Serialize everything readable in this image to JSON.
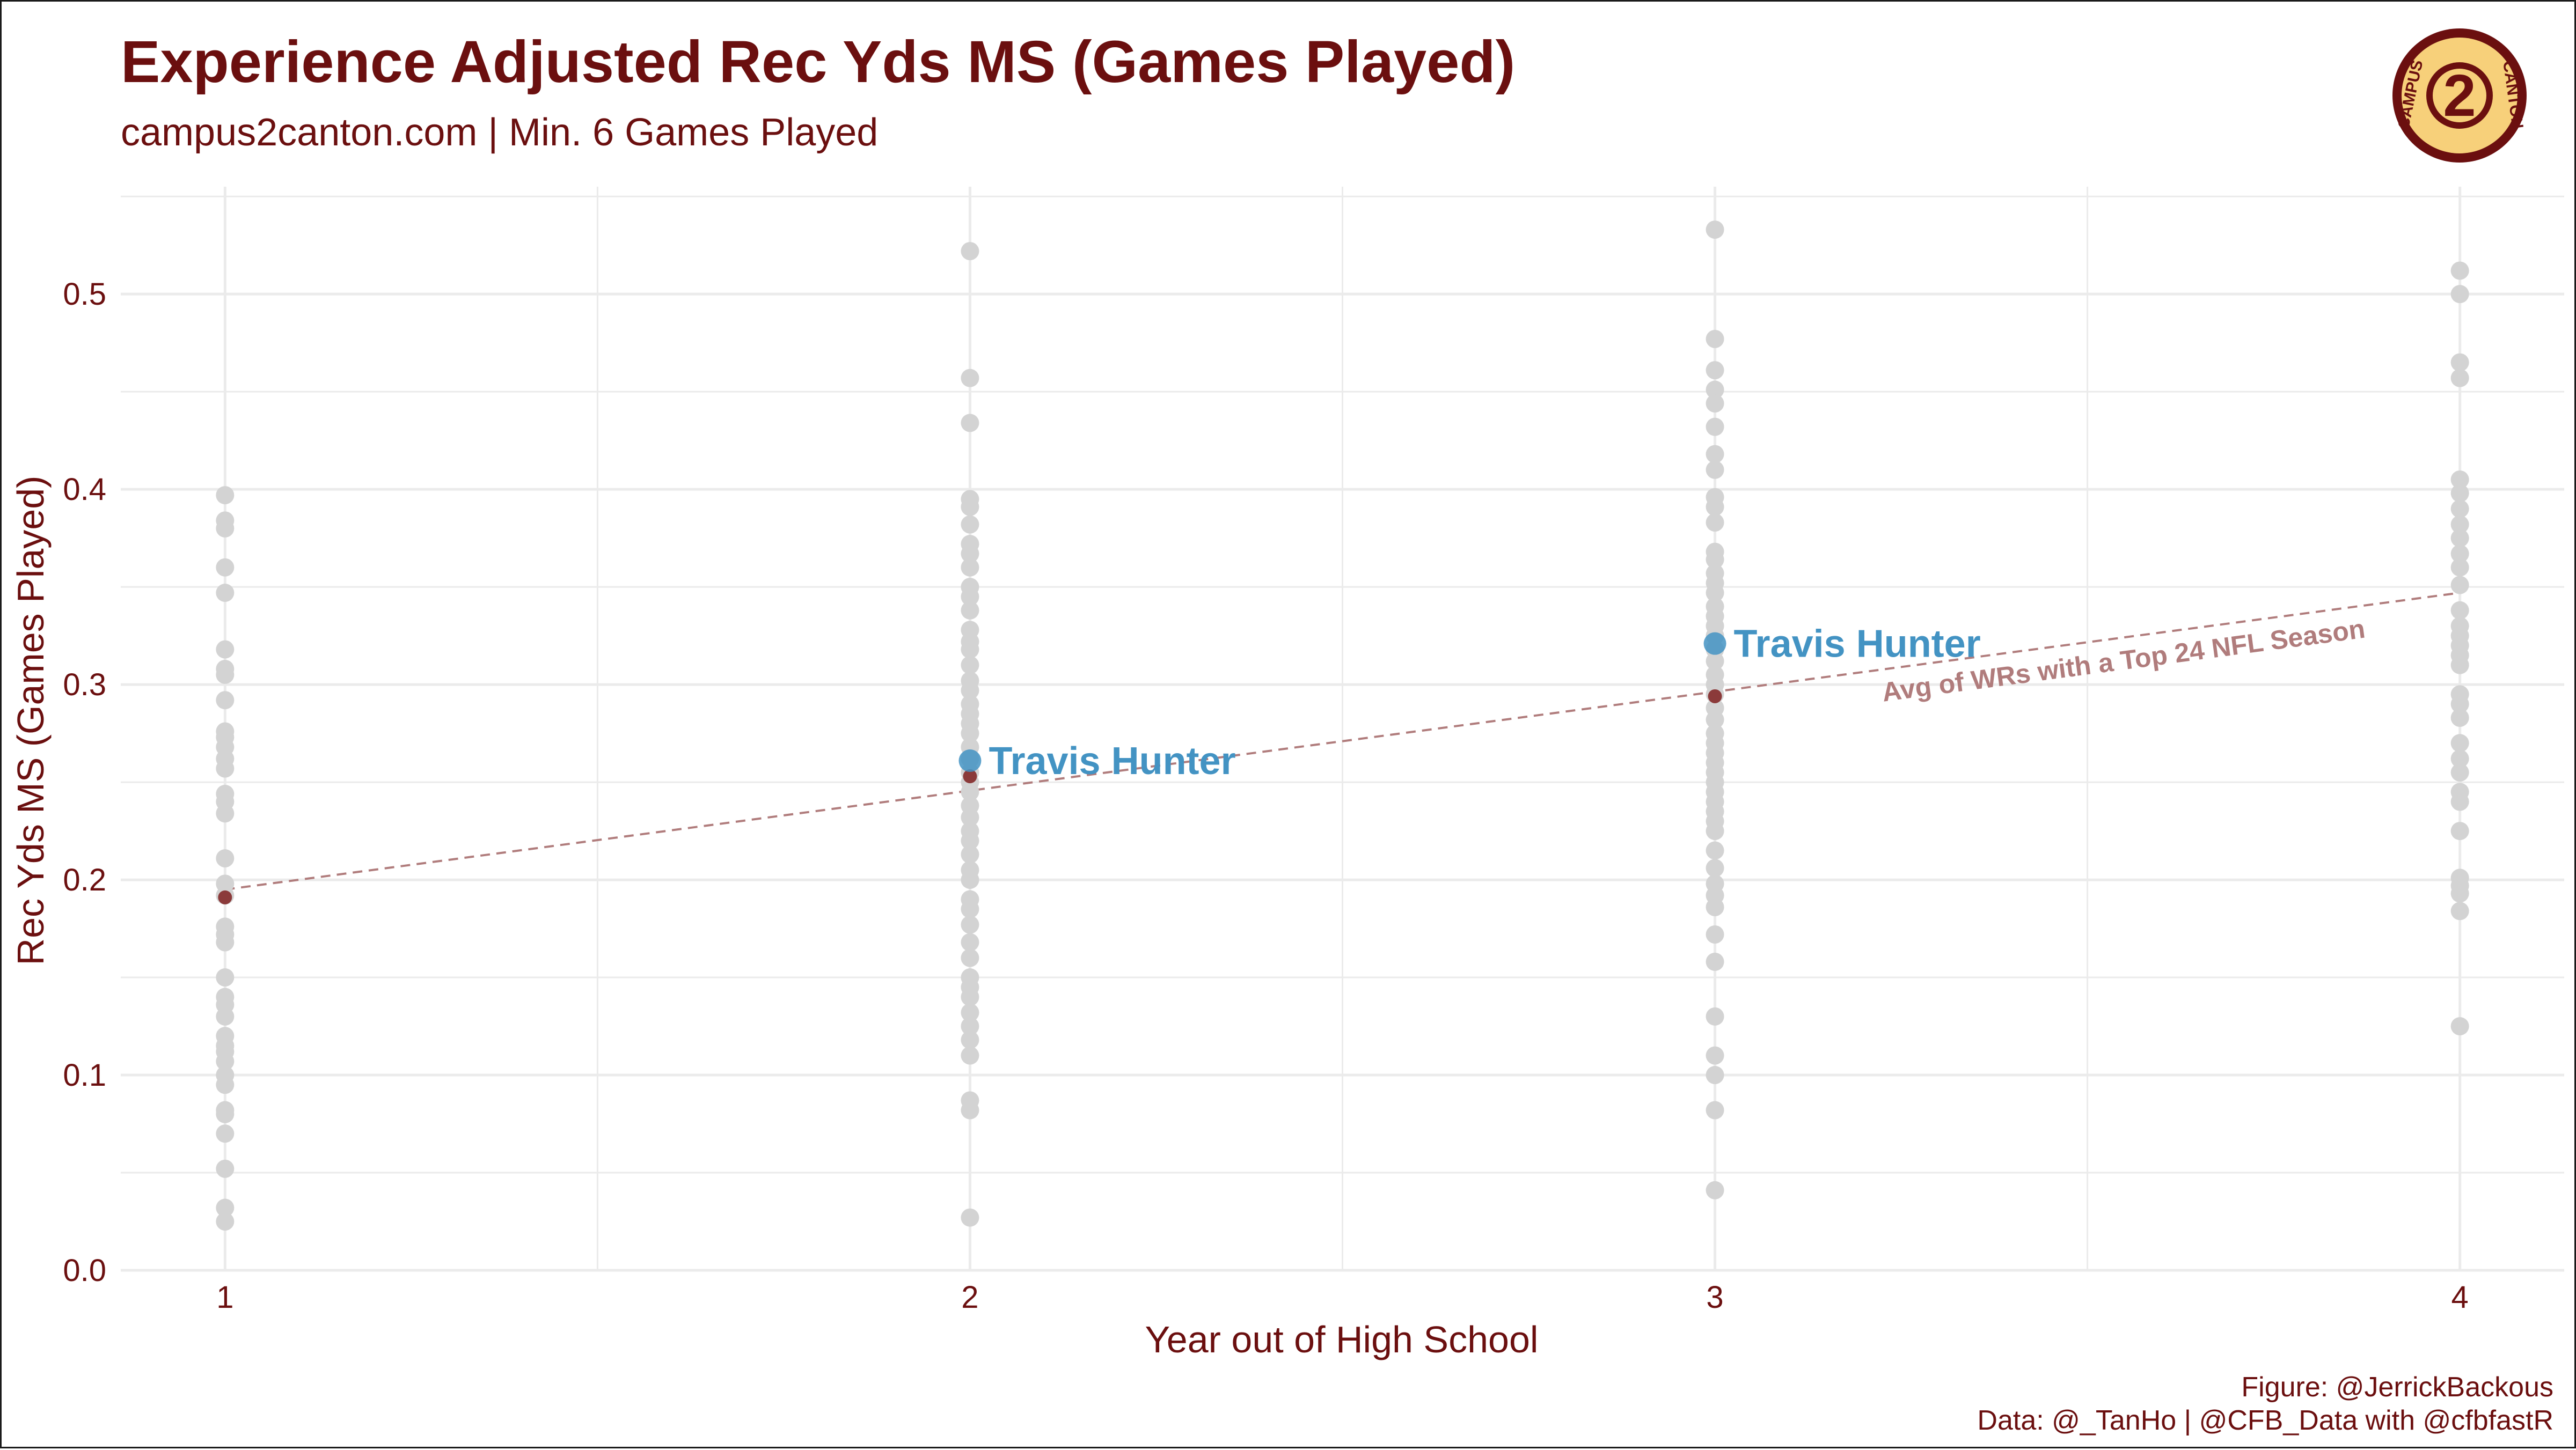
{
  "title": "Experience Adjusted Rec Yds MS (Games Played)",
  "subtitle": "campus2canton.com | Min. 6 Games Played",
  "caption_line1": "Figure: @JerrickBackous",
  "caption_line2": "Data: @_TanHo | @CFB_Data with @cfbfastR",
  "logo": {
    "icon": "campus2canton-logo",
    "number": "2",
    "text_left": "CAMPUS",
    "text_right": "CANTON",
    "colors": {
      "fill": "#f7d07a",
      "ring": "#6b0f0f"
    }
  },
  "colors": {
    "points": "#d3d3d3",
    "highlight": "#4393c3",
    "trend": "#b07c7c",
    "trend_point": "#8b3a3a",
    "text": "#6b0f0f",
    "grid": "#ebebeb"
  },
  "chart_data": {
    "type": "scatter",
    "title": "Experience Adjusted Rec Yds MS (Games Played)",
    "xlabel": "Year out of High School",
    "ylabel": "Rec Yds MS (Games Played)",
    "xlim": [
      0.86,
      4.14
    ],
    "ylim": [
      0.0,
      0.555
    ],
    "x_ticks": [
      "1",
      "2",
      "3",
      "4"
    ],
    "y_ticks": [
      "0.0",
      "0.1",
      "0.2",
      "0.3",
      "0.4",
      "0.5"
    ],
    "grid": true,
    "legend": "none",
    "series": [
      {
        "role": "all-wrs",
        "points": [
          [
            1,
            0.397
          ],
          [
            1,
            0.384
          ],
          [
            1,
            0.38
          ],
          [
            1,
            0.36
          ],
          [
            1,
            0.347
          ],
          [
            1,
            0.318
          ],
          [
            1,
            0.308
          ],
          [
            1,
            0.305
          ],
          [
            1,
            0.292
          ],
          [
            1,
            0.276
          ],
          [
            1,
            0.273
          ],
          [
            1,
            0.268
          ],
          [
            1,
            0.262
          ],
          [
            1,
            0.257
          ],
          [
            1,
            0.244
          ],
          [
            1,
            0.24
          ],
          [
            1,
            0.234
          ],
          [
            1,
            0.211
          ],
          [
            1,
            0.198
          ],
          [
            1,
            0.192
          ],
          [
            1,
            0.176
          ],
          [
            1,
            0.172
          ],
          [
            1,
            0.168
          ],
          [
            1,
            0.15
          ],
          [
            1,
            0.14
          ],
          [
            1,
            0.136
          ],
          [
            1,
            0.13
          ],
          [
            1,
            0.12
          ],
          [
            1,
            0.115
          ],
          [
            1,
            0.112
          ],
          [
            1,
            0.107
          ],
          [
            1,
            0.1
          ],
          [
            1,
            0.095
          ],
          [
            1,
            0.082
          ],
          [
            1,
            0.08
          ],
          [
            1,
            0.07
          ],
          [
            1,
            0.052
          ],
          [
            1,
            0.032
          ],
          [
            1,
            0.025
          ],
          [
            2,
            0.522
          ],
          [
            2,
            0.457
          ],
          [
            2,
            0.434
          ],
          [
            2,
            0.395
          ],
          [
            2,
            0.391
          ],
          [
            2,
            0.382
          ],
          [
            2,
            0.372
          ],
          [
            2,
            0.367
          ],
          [
            2,
            0.36
          ],
          [
            2,
            0.35
          ],
          [
            2,
            0.345
          ],
          [
            2,
            0.338
          ],
          [
            2,
            0.328
          ],
          [
            2,
            0.322
          ],
          [
            2,
            0.318
          ],
          [
            2,
            0.31
          ],
          [
            2,
            0.302
          ],
          [
            2,
            0.297
          ],
          [
            2,
            0.29
          ],
          [
            2,
            0.285
          ],
          [
            2,
            0.28
          ],
          [
            2,
            0.275
          ],
          [
            2,
            0.268
          ],
          [
            2,
            0.262
          ],
          [
            2,
            0.255
          ],
          [
            2,
            0.25
          ],
          [
            2,
            0.245
          ],
          [
            2,
            0.238
          ],
          [
            2,
            0.232
          ],
          [
            2,
            0.225
          ],
          [
            2,
            0.22
          ],
          [
            2,
            0.213
          ],
          [
            2,
            0.205
          ],
          [
            2,
            0.2
          ],
          [
            2,
            0.19
          ],
          [
            2,
            0.185
          ],
          [
            2,
            0.177
          ],
          [
            2,
            0.168
          ],
          [
            2,
            0.16
          ],
          [
            2,
            0.15
          ],
          [
            2,
            0.145
          ],
          [
            2,
            0.14
          ],
          [
            2,
            0.132
          ],
          [
            2,
            0.125
          ],
          [
            2,
            0.118
          ],
          [
            2,
            0.11
          ],
          [
            2,
            0.087
          ],
          [
            2,
            0.082
          ],
          [
            2,
            0.027
          ],
          [
            3,
            0.533
          ],
          [
            3,
            0.477
          ],
          [
            3,
            0.461
          ],
          [
            3,
            0.451
          ],
          [
            3,
            0.444
          ],
          [
            3,
            0.432
          ],
          [
            3,
            0.418
          ],
          [
            3,
            0.41
          ],
          [
            3,
            0.396
          ],
          [
            3,
            0.391
          ],
          [
            3,
            0.383
          ],
          [
            3,
            0.368
          ],
          [
            3,
            0.364
          ],
          [
            3,
            0.357
          ],
          [
            3,
            0.352
          ],
          [
            3,
            0.347
          ],
          [
            3,
            0.34
          ],
          [
            3,
            0.335
          ],
          [
            3,
            0.33
          ],
          [
            3,
            0.325
          ],
          [
            3,
            0.318
          ],
          [
            3,
            0.312
          ],
          [
            3,
            0.305
          ],
          [
            3,
            0.3
          ],
          [
            3,
            0.295
          ],
          [
            3,
            0.288
          ],
          [
            3,
            0.282
          ],
          [
            3,
            0.275
          ],
          [
            3,
            0.27
          ],
          [
            3,
            0.265
          ],
          [
            3,
            0.26
          ],
          [
            3,
            0.255
          ],
          [
            3,
            0.25
          ],
          [
            3,
            0.245
          ],
          [
            3,
            0.24
          ],
          [
            3,
            0.235
          ],
          [
            3,
            0.23
          ],
          [
            3,
            0.225
          ],
          [
            3,
            0.215
          ],
          [
            3,
            0.206
          ],
          [
            3,
            0.198
          ],
          [
            3,
            0.192
          ],
          [
            3,
            0.186
          ],
          [
            3,
            0.172
          ],
          [
            3,
            0.158
          ],
          [
            3,
            0.13
          ],
          [
            3,
            0.11
          ],
          [
            3,
            0.1
          ],
          [
            3,
            0.082
          ],
          [
            3,
            0.041
          ],
          [
            4,
            0.512
          ],
          [
            4,
            0.5
          ],
          [
            4,
            0.465
          ],
          [
            4,
            0.457
          ],
          [
            4,
            0.405
          ],
          [
            4,
            0.398
          ],
          [
            4,
            0.39
          ],
          [
            4,
            0.382
          ],
          [
            4,
            0.375
          ],
          [
            4,
            0.367
          ],
          [
            4,
            0.36
          ],
          [
            4,
            0.351
          ],
          [
            4,
            0.338
          ],
          [
            4,
            0.33
          ],
          [
            4,
            0.325
          ],
          [
            4,
            0.32
          ],
          [
            4,
            0.315
          ],
          [
            4,
            0.31
          ],
          [
            4,
            0.295
          ],
          [
            4,
            0.29
          ],
          [
            4,
            0.283
          ],
          [
            4,
            0.27
          ],
          [
            4,
            0.262
          ],
          [
            4,
            0.255
          ],
          [
            4,
            0.245
          ],
          [
            4,
            0.24
          ],
          [
            4,
            0.225
          ],
          [
            4,
            0.201
          ],
          [
            4,
            0.197
          ],
          [
            4,
            0.193
          ],
          [
            4,
            0.184
          ],
          [
            4,
            0.125
          ]
        ]
      },
      {
        "role": "avg-top24-wrs",
        "label": "Avg of WRs with a Top 24 NFL Season",
        "points": [
          [
            1,
            0.191
          ],
          [
            2,
            0.253
          ],
          [
            3,
            0.294
          ]
        ],
        "trend": [
          [
            1,
            0.195
          ],
          [
            4,
            0.347
          ]
        ]
      },
      {
        "role": "highlighted-player",
        "label": "Travis Hunter",
        "points": [
          [
            2,
            0.261
          ],
          [
            3,
            0.321
          ]
        ]
      }
    ]
  }
}
